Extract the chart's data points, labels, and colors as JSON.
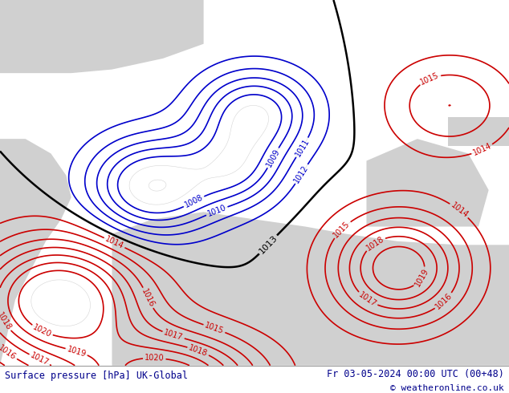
{
  "title_left": "Surface pressure [hPa] UK-Global",
  "title_right": "Fr 03-05-2024 00:00 UTC (00+48)",
  "copyright": "© weatheronline.co.uk",
  "background_land": "#c8e6a0",
  "background_sea": "#d0d0d0",
  "contour_color_red": "#cc0000",
  "contour_color_blue": "#0000cc",
  "contour_color_black": "#000000",
  "contour_color_gray": "#aaaaaa",
  "bottom_bar_color": "#e0e0e0",
  "title_color": "#00008B",
  "figsize": [
    6.34,
    4.9
  ],
  "dpi": 100,
  "red_levels": [
    1014,
    1015,
    1016,
    1017,
    1018,
    1019,
    1020
  ],
  "blue_levels": [
    1008,
    1009,
    1010,
    1011,
    1012
  ],
  "black_levels": [
    1013
  ],
  "gray_levels": [
    1006,
    1007,
    1008,
    1009,
    1010,
    1011,
    1012,
    1013,
    1014,
    1015,
    1016,
    1017,
    1018,
    1019,
    1020,
    1021
  ]
}
